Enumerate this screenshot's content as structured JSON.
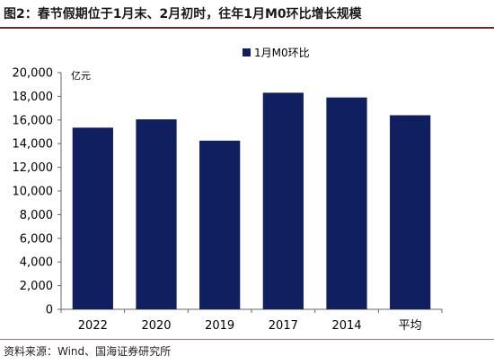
{
  "header": {
    "title": "图2：春节假期位于1月末、2月初时，往年1月M0环比增长规模"
  },
  "chart_data": {
    "type": "bar",
    "title": "",
    "xlabel": "",
    "ylabel": "亿元",
    "ylim": [
      0,
      20000
    ],
    "ticks": [
      0,
      2000,
      4000,
      6000,
      8000,
      10000,
      12000,
      14000,
      16000,
      18000,
      20000
    ],
    "tick_labels": [
      "0",
      "2,000",
      "4,000",
      "6,000",
      "8,000",
      "10,000",
      "12,000",
      "14,000",
      "16,000",
      "18,000",
      "20,000"
    ],
    "categories": [
      "2022",
      "2020",
      "2019",
      "2017",
      "2014",
      "平均"
    ],
    "series": [
      {
        "name": "1月M0环比",
        "values": [
          15350,
          16050,
          14250,
          18300,
          17900,
          16400
        ]
      }
    ],
    "legend_position": "top-right",
    "grid": false,
    "colors": {
      "bar": "#0f1f5f",
      "axis": "#666666"
    }
  },
  "footer": {
    "source": "资料来源：Wind、国海证券研究所"
  }
}
